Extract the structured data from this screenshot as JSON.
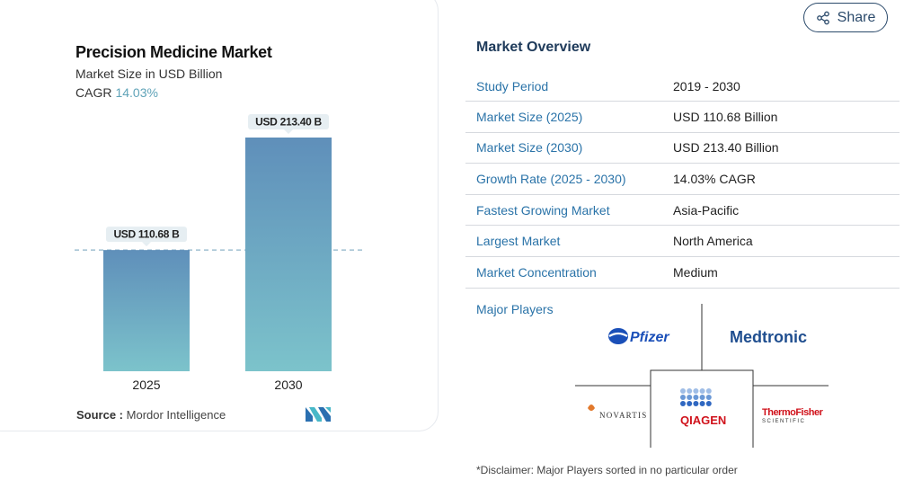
{
  "chart_card": {
    "title": "Precision Medicine Market",
    "subtitle": "Market Size in USD Billion",
    "cagr_label": "CAGR",
    "cagr_value": "14.03%",
    "source_label": "Source :",
    "source_value": "Mordor Intelligence"
  },
  "chart_data": {
    "type": "bar",
    "title": "Precision Medicine Market",
    "subtitle": "Market Size in USD Billion",
    "categories": [
      "2025",
      "2030"
    ],
    "values": [
      110.68,
      213.4
    ],
    "data_labels": [
      "USD 110.68 B",
      "USD 213.40 B"
    ],
    "ylim": [
      0,
      213.4
    ],
    "reference_line": 110.68,
    "colors": {
      "top": "#5f8fba",
      "bottom": "#7cc3cb"
    }
  },
  "share": {
    "label": "Share",
    "icon": "share-icon"
  },
  "overview": {
    "title": "Market Overview",
    "rows": [
      {
        "label": "Study Period",
        "value": "2019 - 2030"
      },
      {
        "label": "Market Size (2025)",
        "value": "USD 110.68 Billion"
      },
      {
        "label": "Market Size (2030)",
        "value": "USD 213.40 Billion"
      },
      {
        "label": "Growth Rate (2025 - 2030)",
        "value": "14.03% CAGR"
      },
      {
        "label": "Fastest Growing Market",
        "value": "Asia-Pacific"
      },
      {
        "label": "Largest Market",
        "value": "North America"
      },
      {
        "label": "Market Concentration",
        "value": "Medium"
      }
    ],
    "major_players_label": "Major Players",
    "players": [
      "Pfizer",
      "Medtronic",
      "NOVARTIS",
      "QIAGEN",
      "ThermoFisher",
      "SCIENTIFIC"
    ],
    "disclaimer": "*Disclaimer: Major Players sorted in no particular order"
  },
  "colors": {
    "accent": "#2a73a8",
    "dark": "#1e3a5a"
  }
}
